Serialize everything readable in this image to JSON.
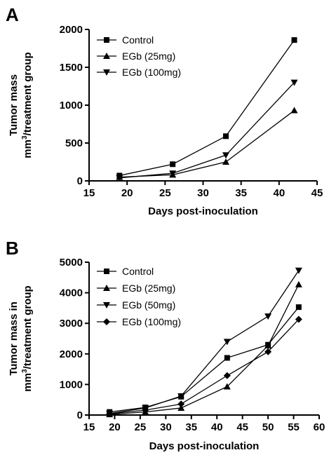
{
  "chart_data": [
    {
      "panel_label": "A",
      "type": "line",
      "xlabel": "Days post-inoculation",
      "ylabel_line1": "Tumor mass",
      "ylabel_line2_base": "mm",
      "ylabel_line2_sup": "3",
      "ylabel_line2_rest": "/treatment group",
      "xlim": [
        15,
        45
      ],
      "ylim": [
        0,
        2000
      ],
      "xticks": [
        "15",
        "20",
        "25",
        "30",
        "35",
        "40",
        "45"
      ],
      "yticks": [
        "0",
        "500",
        "1000",
        "1500",
        "2000"
      ],
      "grid": false,
      "legend_position": "top-left",
      "x": [
        19,
        26,
        33,
        42
      ],
      "series": [
        {
          "name": "Control",
          "marker": "square",
          "values": [
            70,
            220,
            590,
            1860
          ]
        },
        {
          "name": "EGb (25mg)",
          "marker": "triangle-up",
          "values": [
            50,
            80,
            250,
            930
          ]
        },
        {
          "name": "EGb (100mg)",
          "marker": "triangle-down",
          "values": [
            40,
            100,
            340,
            1300
          ]
        }
      ]
    },
    {
      "panel_label": "B",
      "type": "line",
      "xlabel": "Days post-inoculation",
      "ylabel_line1": "Tumor mass in",
      "ylabel_line2_base": "mm",
      "ylabel_line2_sup": "3",
      "ylabel_line2_rest": "/treatment group",
      "xlim": [
        15,
        60
      ],
      "ylim": [
        0,
        5000
      ],
      "xticks": [
        "15",
        "20",
        "25",
        "30",
        "35",
        "40",
        "45",
        "50",
        "55",
        "60"
      ],
      "yticks": [
        "0",
        "1000",
        "2000",
        "3000",
        "4000",
        "5000"
      ],
      "grid": false,
      "legend_position": "top-left",
      "x": [
        19,
        26,
        33,
        42,
        50,
        56
      ],
      "series": [
        {
          "name": "Control",
          "marker": "square",
          "values": [
            100,
            250,
            600,
            1870,
            2300,
            3530
          ]
        },
        {
          "name": "EGb (25mg)",
          "marker": "triangle-up",
          "values": [
            20,
            100,
            230,
            930,
            2270,
            4270
          ]
        },
        {
          "name": "EGb (50mg)",
          "marker": "triangle-down",
          "values": [
            50,
            230,
            620,
            2400,
            3230,
            4730
          ]
        },
        {
          "name": "EGb (100mg)",
          "marker": "diamond",
          "values": [
            40,
            160,
            360,
            1290,
            2070,
            3130
          ]
        }
      ]
    }
  ]
}
